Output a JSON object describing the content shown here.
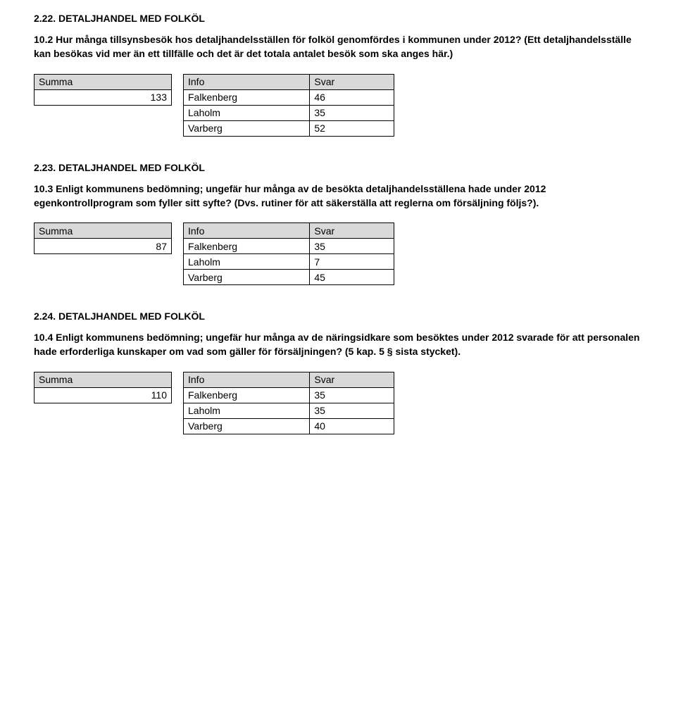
{
  "sections": [
    {
      "heading": "2.22. DETALJHANDEL MED FOLKÖL",
      "question": "10.2 Hur många tillsynsbesök hos detaljhandelsställen för folköl genomfördes i kommunen under 2012?\n(Ett detaljhandelsställe kan besökas vid mer än ett tillfälle och det är det totala antalet besök som ska anges här.)",
      "summa_label": "Summa",
      "summa_value": "133",
      "info_header1": "Info",
      "info_header2": "Svar",
      "rows": [
        {
          "k": "Falkenberg",
          "v": "46"
        },
        {
          "k": "Laholm",
          "v": "35"
        },
        {
          "k": "Varberg",
          "v": "52"
        }
      ]
    },
    {
      "heading": "2.23. DETALJHANDEL MED FOLKÖL",
      "question": "10.3 Enligt kommunens bedömning; ungefär hur många av de besökta detaljhandelsställena hade under 2012 egenkontrollprogram  som fyller sitt syfte? (Dvs. rutiner för att säkerställa att reglerna om försäljning följs?).",
      "summa_label": "Summa",
      "summa_value": "87",
      "info_header1": "Info",
      "info_header2": "Svar",
      "rows": [
        {
          "k": "Falkenberg",
          "v": "35"
        },
        {
          "k": "Laholm",
          "v": "7"
        },
        {
          "k": "Varberg",
          "v": "45"
        }
      ]
    },
    {
      "heading": "2.24. DETALJHANDEL MED FOLKÖL",
      "question": "10.4 Enligt kommunens bedömning; ungefär hur många av de näringsidkare som besöktes under 2012 svarade för att personalen hade erforderliga kunskaper om vad som gäller för försäljningen? (5 kap. 5 § sista stycket).",
      "summa_label": "Summa",
      "summa_value": "110",
      "info_header1": "Info",
      "info_header2": "Svar",
      "rows": [
        {
          "k": "Falkenberg",
          "v": "35"
        },
        {
          "k": "Laholm",
          "v": "35"
        },
        {
          "k": "Varberg",
          "v": "40"
        }
      ]
    }
  ]
}
